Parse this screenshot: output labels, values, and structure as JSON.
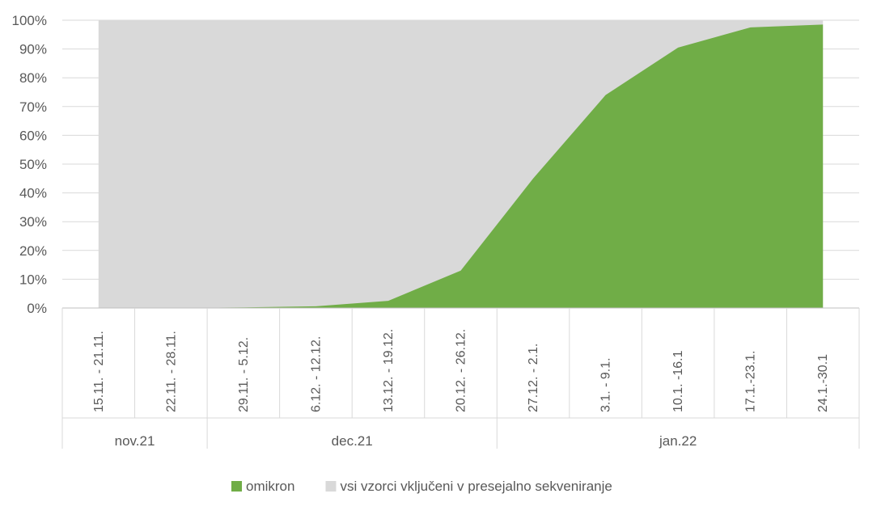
{
  "chart_data": {
    "type": "area",
    "title": "",
    "xlabel": "",
    "ylabel": "",
    "ylim": [
      0,
      100
    ],
    "yticks": [
      "0%",
      "10%",
      "20%",
      "30%",
      "40%",
      "50%",
      "60%",
      "70%",
      "80%",
      "90%",
      "100%"
    ],
    "yticks_values": [
      0,
      10,
      20,
      30,
      40,
      50,
      60,
      70,
      80,
      90,
      100
    ],
    "grid": true,
    "legend_position": "bottom",
    "categories": [
      "15.11. - 21.11.",
      "22.11. - 28.11.",
      "29.11. - 5.12.",
      "6.12. - 12.12.",
      "13.12. - 19.12.",
      "20.12. - 26.12.",
      "27.12. - 2.1.",
      "3.1. - 9.1.",
      "10.1. -16.1",
      "17.1.-23.1.",
      "24.1.-30.1"
    ],
    "groups": [
      {
        "label": "nov.21",
        "start": 0,
        "end": 1
      },
      {
        "label": "dec.21",
        "start": 2,
        "end": 5
      },
      {
        "label": "jan.22",
        "start": 6,
        "end": 10
      }
    ],
    "series": [
      {
        "name": "omikron",
        "color": "#70ad47",
        "values": [
          0,
          0,
          0.2,
          0.6,
          2.5,
          13,
          45,
          74,
          90.5,
          97.5,
          98.5
        ]
      },
      {
        "name": "vsi vzorci vključeni v presejalno sekveniranje",
        "color": "#d9d9d9",
        "values": [
          100,
          100,
          100,
          100,
          100,
          100,
          100,
          100,
          100,
          100,
          100
        ]
      }
    ]
  }
}
